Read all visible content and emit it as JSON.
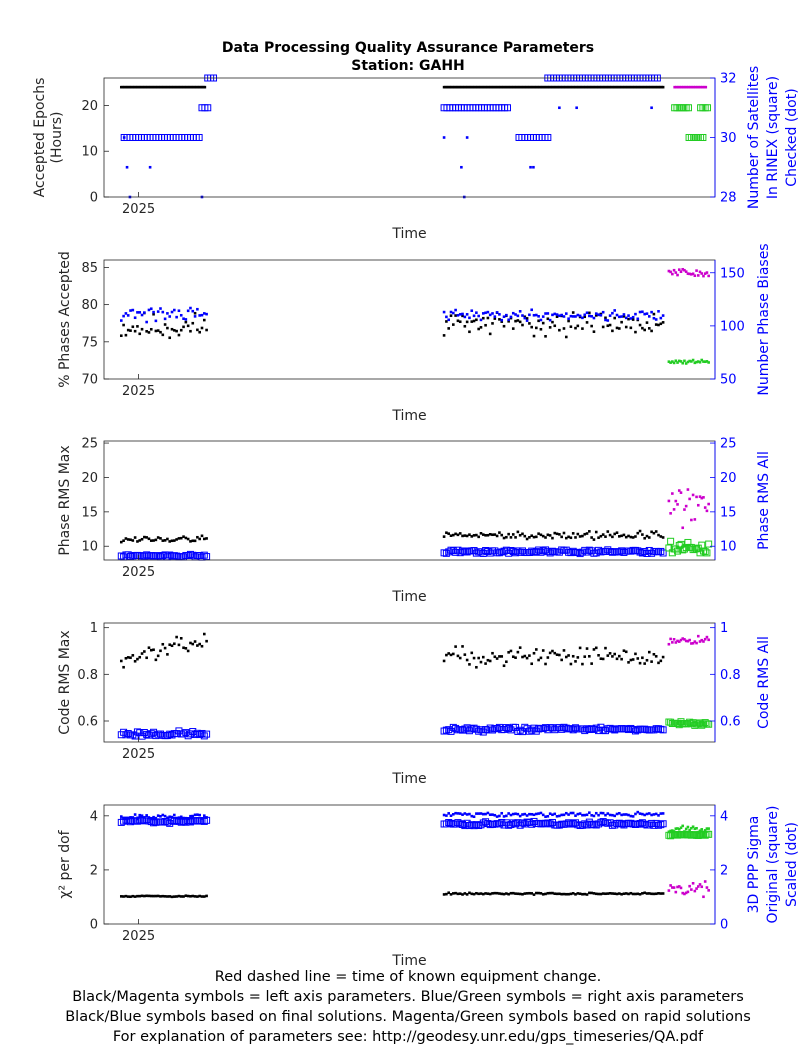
{
  "figure": {
    "title_line1": "Data Processing Quality Assurance Parameters",
    "title_line2": "Station: GAHH",
    "footer": [
      "Red dashed line = time of known equipment change.",
      "Black/Magenta symbols = left axis parameters. Blue/Green symbols = right axis parameters",
      "Black/Blue symbols based on final solutions.  Magenta/Green symbols based on rapid solutions",
      "For explanation of parameters see: http://geodesy.unr.edu/gps_timeseries/QA.pdf"
    ],
    "colors": {
      "black": "#000000",
      "blue": "#0000ff",
      "magenta": "#cc00cc",
      "green": "#22cc22",
      "axis_right": "#0000ff"
    }
  },
  "chart_data": [
    {
      "type": "scatter",
      "xlabel": "Time",
      "x_tick_label": "2025",
      "ylabel_left": [
        "Accepted Epochs",
        "(Hours)"
      ],
      "ylabel_right": [
        "Number of Satellites",
        "In RINEX (square)",
        "Checked (dot)"
      ],
      "ylim_left": [
        0,
        26
      ],
      "yticks_left": [
        0,
        10,
        20
      ],
      "ylim_right": [
        28,
        32
      ],
      "yticks_right": [
        28,
        30,
        32
      ],
      "series": [
        {
          "axis": "left",
          "color": "black",
          "marker": "dot",
          "segments": [
            {
              "x": [
                0,
                14.5
              ],
              "value": 24,
              "step": 0.25
            },
            {
              "x": [
                56,
                94
              ],
              "value": 24,
              "step": 0.25
            }
          ]
        },
        {
          "axis": "right",
          "color": "blue",
          "marker": "square",
          "segments": [
            {
              "x": [
                0.5,
                13.5
              ],
              "value": 30,
              "step": 0.5
            },
            {
              "x": [
                14,
                15
              ],
              "value": 31,
              "step": 0.5
            },
            {
              "x": [
                15,
                16
              ],
              "value": 32,
              "step": 0.5
            },
            {
              "x": [
                56,
                67
              ],
              "value": 31,
              "step": 0.5
            },
            {
              "x": [
                69,
                74
              ],
              "value": 30,
              "step": 0.5
            },
            {
              "x": [
                74,
                93
              ],
              "value": 32,
              "step": 0.5
            }
          ]
        },
        {
          "axis": "right",
          "color": "blue",
          "marker": "dot",
          "points": [
            [
              0.5,
              30
            ],
            [
              1,
              29
            ],
            [
              1.5,
              28
            ],
            [
              5,
              29
            ],
            [
              14,
              28
            ],
            [
              56,
              30
            ],
            [
              59,
              29
            ],
            [
              59.5,
              28
            ],
            [
              60,
              30
            ],
            [
              71,
              29
            ],
            [
              71.5,
              29
            ],
            [
              76,
              31
            ],
            [
              79,
              31
            ],
            [
              92,
              31
            ]
          ]
        },
        {
          "axis": "left",
          "color": "magenta",
          "marker": "dot",
          "segments": [
            {
              "x": [
                96,
                101.5
              ],
              "value": 24,
              "step": 0.3
            }
          ]
        },
        {
          "axis": "right",
          "color": "green",
          "marker": "square",
          "segments": [
            {
              "x": [
                96,
                98.5
              ],
              "value": 31,
              "step": 0.4
            },
            {
              "x": [
                98.5,
                101
              ],
              "value": 30,
              "step": 0.4
            },
            {
              "x": [
                100.5,
                102
              ],
              "value": 31,
              "step": 0.4
            }
          ]
        }
      ]
    },
    {
      "type": "scatter",
      "xlabel": "Time",
      "x_tick_label": "2025",
      "ylabel_left": [
        "% Phases Accepted"
      ],
      "ylabel_right": [
        "Number Phase Biases"
      ],
      "ylim_left": [
        70,
        86
      ],
      "yticks_left": [
        70,
        75,
        80,
        85
      ],
      "ylim_right": [
        50,
        162
      ],
      "yticks_right": [
        50,
        100,
        150
      ],
      "series": [
        {
          "axis": "left",
          "color": "black",
          "marker": "dot",
          "generate": {
            "x": [
              0,
              15
            ],
            "step": 0.4,
            "mean": 77,
            "spread": 2.8,
            "seed": 11
          }
        },
        {
          "axis": "right",
          "color": "blue",
          "marker": "dot",
          "generate": {
            "x": [
              0,
              15
            ],
            "step": 0.4,
            "mean": 112,
            "spread": 12,
            "seed": 21
          }
        },
        {
          "axis": "left",
          "color": "black",
          "marker": "dot",
          "generate": {
            "x": [
              56,
              94
            ],
            "step": 0.4,
            "mean": 77.5,
            "spread": 2.2,
            "seed": 31
          }
        },
        {
          "axis": "right",
          "color": "blue",
          "marker": "dot",
          "generate": {
            "x": [
              56,
              94
            ],
            "step": 0.4,
            "mean": 110,
            "spread": 7,
            "seed": 41
          }
        },
        {
          "axis": "left",
          "color": "magenta",
          "marker": "dot",
          "generate": {
            "x": [
              95,
              102
            ],
            "step": 0.3,
            "mean": 84.3,
            "spread": 0.8,
            "seed": 51
          }
        },
        {
          "axis": "right",
          "color": "green",
          "marker": "dot",
          "generate": {
            "x": [
              95,
              102
            ],
            "step": 0.3,
            "mean": 66,
            "spread": 3,
            "seed": 61
          }
        }
      ]
    },
    {
      "type": "scatter",
      "xlabel": "Time",
      "x_tick_label": "2025",
      "ylabel_left": [
        "Phase RMS Max"
      ],
      "ylabel_right": [
        "Phase RMS All"
      ],
      "ylim_left": [
        8,
        25.3
      ],
      "yticks_left": [
        10,
        15,
        20,
        25
      ],
      "ylim_right": [
        8,
        25.3
      ],
      "yticks_right": [
        10,
        15,
        20,
        25
      ],
      "series": [
        {
          "axis": "left",
          "color": "black",
          "marker": "dot",
          "generate": {
            "x": [
              0,
              15
            ],
            "step": 0.4,
            "mean": 11,
            "spread": 0.7,
            "seed": 12
          }
        },
        {
          "axis": "right",
          "color": "blue",
          "marker": "square",
          "generate": {
            "x": [
              0,
              15
            ],
            "step": 0.4,
            "mean": 8.6,
            "spread": 0.25,
            "seed": 22
          }
        },
        {
          "axis": "left",
          "color": "black",
          "marker": "dot",
          "generate": {
            "x": [
              56,
              94
            ],
            "step": 0.4,
            "mean": 11.6,
            "spread": 0.9,
            "seed": 32
          }
        },
        {
          "axis": "right",
          "color": "blue",
          "marker": "square",
          "generate": {
            "x": [
              56,
              94
            ],
            "step": 0.4,
            "mean": 9.2,
            "spread": 0.4,
            "seed": 42
          }
        },
        {
          "axis": "left",
          "color": "magenta",
          "marker": "dot",
          "generate": {
            "x": [
              95,
              102
            ],
            "step": 0.3,
            "mean": 16,
            "spread": 5,
            "seed": 52
          }
        },
        {
          "axis": "right",
          "color": "green",
          "marker": "square",
          "generate": {
            "x": [
              95,
              102
            ],
            "step": 0.3,
            "mean": 9.8,
            "spread": 1.2,
            "seed": 62
          }
        }
      ]
    },
    {
      "type": "scatter",
      "xlabel": "Time",
      "x_tick_label": "2025",
      "ylabel_left": [
        "Code RMS Max"
      ],
      "ylabel_right": [
        "Code RMS All"
      ],
      "ylim_left": [
        0.51,
        1.02
      ],
      "yticks_left": [
        0.6,
        0.8,
        1
      ],
      "ylim_right": [
        0.51,
        1.02
      ],
      "yticks_right": [
        0.6,
        0.8,
        1
      ],
      "series": [
        {
          "axis": "left",
          "color": "black",
          "marker": "dot",
          "generate": {
            "x": [
              0,
              15
            ],
            "step": 0.4,
            "mean": 0.86,
            "spread": 0.05,
            "seed": 13,
            "trend": 0.006
          }
        },
        {
          "axis": "right",
          "color": "blue",
          "marker": "square",
          "generate": {
            "x": [
              0,
              15
            ],
            "step": 0.4,
            "mean": 0.545,
            "spread": 0.018,
            "seed": 23
          }
        },
        {
          "axis": "left",
          "color": "black",
          "marker": "dot",
          "generate": {
            "x": [
              56,
              94
            ],
            "step": 0.4,
            "mean": 0.88,
            "spread": 0.06,
            "seed": 33
          }
        },
        {
          "axis": "right",
          "color": "blue",
          "marker": "square",
          "generate": {
            "x": [
              56,
              94
            ],
            "step": 0.4,
            "mean": 0.565,
            "spread": 0.015,
            "seed": 43
          }
        },
        {
          "axis": "left",
          "color": "magenta",
          "marker": "dot",
          "generate": {
            "x": [
              95,
              102
            ],
            "step": 0.3,
            "mean": 0.95,
            "spread": 0.03,
            "seed": 53
          }
        },
        {
          "axis": "right",
          "color": "green",
          "marker": "square",
          "generate": {
            "x": [
              95,
              102
            ],
            "step": 0.3,
            "mean": 0.59,
            "spread": 0.012,
            "seed": 63
          }
        }
      ]
    },
    {
      "type": "scatter",
      "xlabel": "Time",
      "x_tick_label": "2025",
      "ylabel_left": [
        "χ² per dof"
      ],
      "ylabel_right": [
        "3D PPP Sigma",
        "Original (square)",
        "Scaled (dot)"
      ],
      "ylim_left": [
        0,
        4.4
      ],
      "yticks_left": [
        0,
        2,
        4
      ],
      "ylim_right": [
        0,
        4.4
      ],
      "yticks_right": [
        0,
        2,
        4
      ],
      "series": [
        {
          "axis": "left",
          "color": "black",
          "marker": "dot",
          "generate": {
            "x": [
              0,
              15
            ],
            "step": 0.4,
            "mean": 1.03,
            "spread": 0.04,
            "seed": 14
          }
        },
        {
          "axis": "right",
          "color": "blue",
          "marker": "square",
          "generate": {
            "x": [
              0,
              15
            ],
            "step": 0.4,
            "mean": 3.8,
            "spread": 0.12,
            "seed": 24
          }
        },
        {
          "axis": "right",
          "color": "blue",
          "marker": "dot",
          "generate": {
            "x": [
              0,
              15
            ],
            "step": 0.4,
            "mean": 3.95,
            "spread": 0.15,
            "seed": 25
          }
        },
        {
          "axis": "left",
          "color": "black",
          "marker": "dot",
          "generate": {
            "x": [
              56,
              94
            ],
            "step": 0.4,
            "mean": 1.12,
            "spread": 0.05,
            "seed": 34
          }
        },
        {
          "axis": "right",
          "color": "blue",
          "marker": "square",
          "generate": {
            "x": [
              56,
              94
            ],
            "step": 0.4,
            "mean": 3.7,
            "spread": 0.12,
            "seed": 44
          }
        },
        {
          "axis": "right",
          "color": "blue",
          "marker": "dot",
          "generate": {
            "x": [
              56,
              94
            ],
            "step": 0.4,
            "mean": 4.05,
            "spread": 0.12,
            "seed": 45
          }
        },
        {
          "axis": "left",
          "color": "magenta",
          "marker": "dot",
          "generate": {
            "x": [
              95,
              102
            ],
            "step": 0.3,
            "mean": 1.3,
            "spread": 0.35,
            "seed": 54
          }
        },
        {
          "axis": "right",
          "color": "green",
          "marker": "square",
          "generate": {
            "x": [
              95,
              102
            ],
            "step": 0.3,
            "mean": 3.3,
            "spread": 0.06,
            "seed": 64
          }
        },
        {
          "axis": "right",
          "color": "green",
          "marker": "dot",
          "generate": {
            "x": [
              95,
              102
            ],
            "step": 0.3,
            "mean": 3.5,
            "spread": 0.18,
            "seed": 65
          }
        }
      ]
    }
  ]
}
